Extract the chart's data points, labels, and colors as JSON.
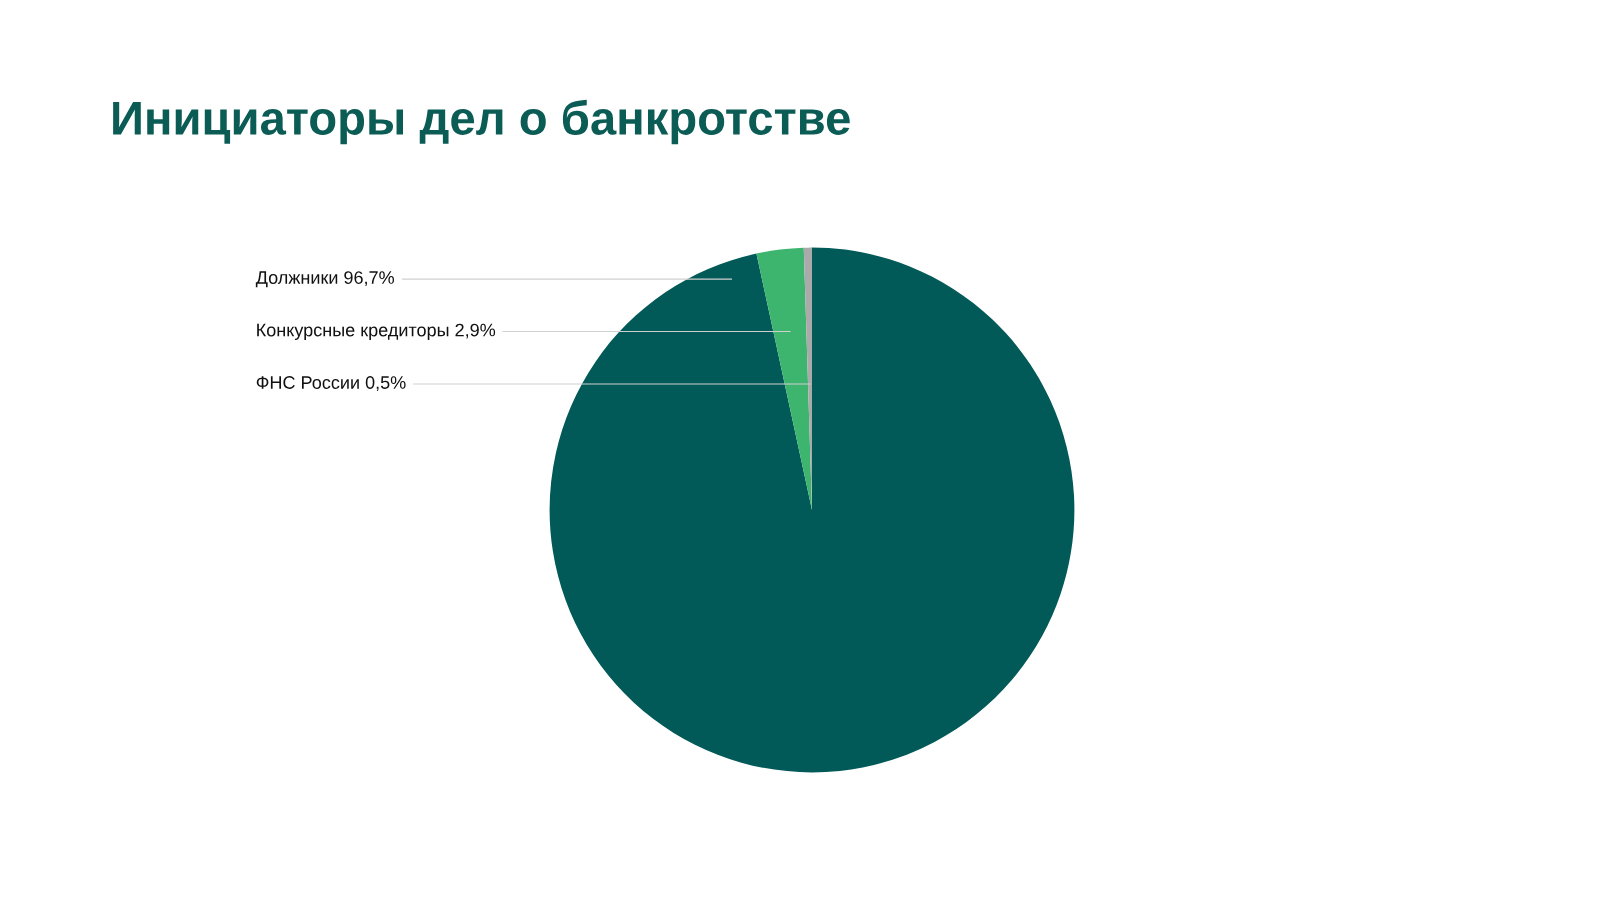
{
  "chart_data": {
    "type": "pie",
    "title": "Инициаторы дел о банкротстве",
    "categories": [
      "Должники",
      "Конкурсные кредиторы",
      "ФНС России"
    ],
    "values": [
      96.7,
      2.9,
      0.5
    ],
    "value_labels": [
      "96,7%",
      "2,9%",
      "0,5%"
    ],
    "colors": [
      "#025a58",
      "#3db56f",
      "#aaaaaa"
    ],
    "legend": false
  }
}
